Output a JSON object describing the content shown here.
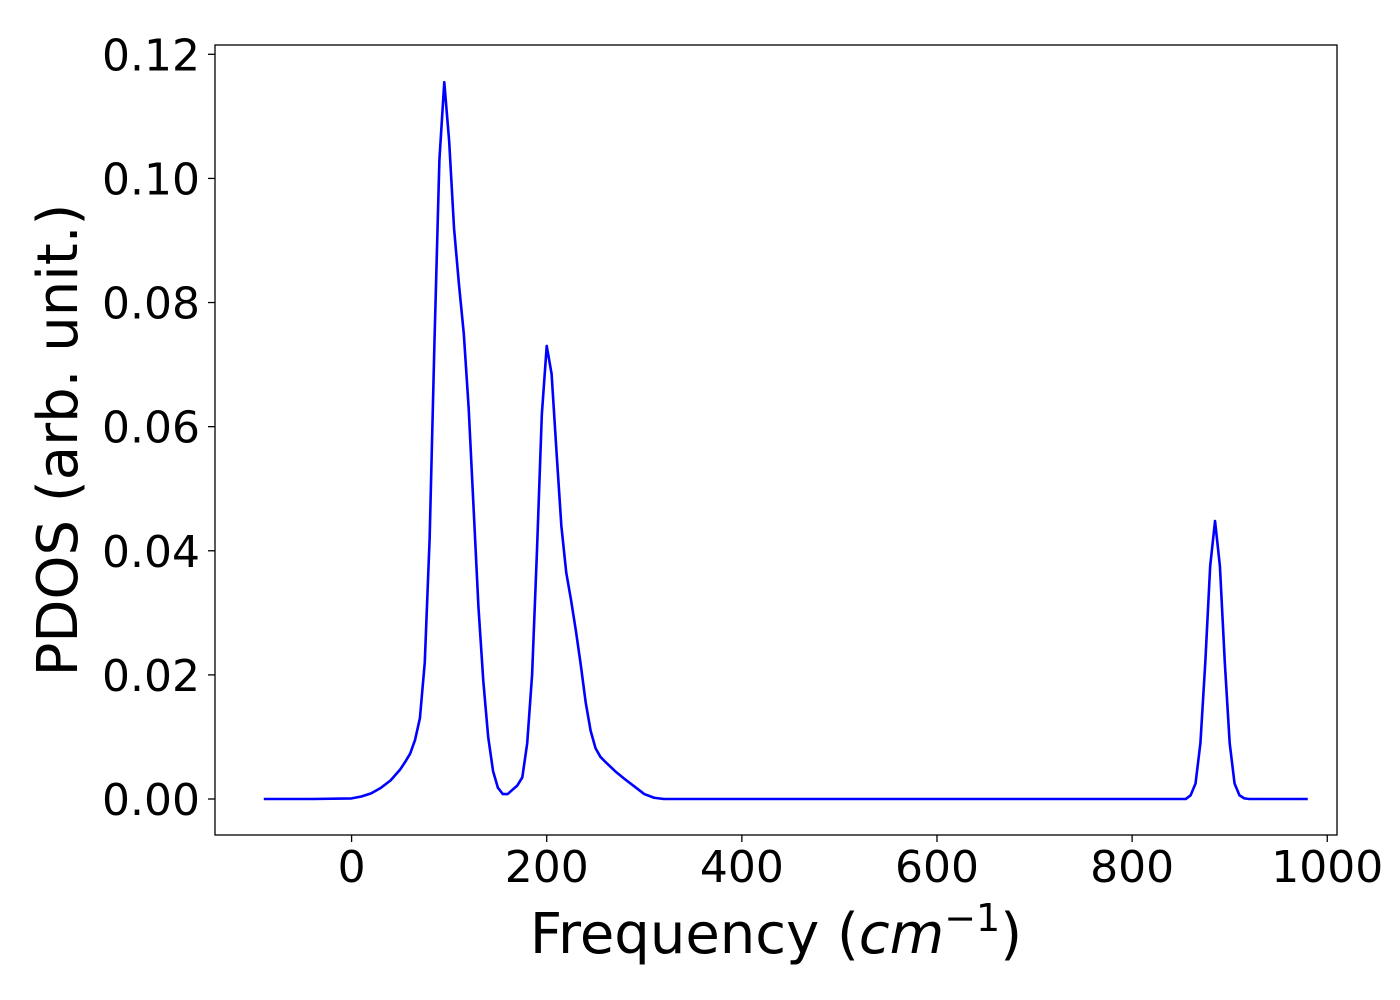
{
  "chart_data": {
    "type": "line",
    "title": "",
    "xlabel_main": "Frequency (",
    "xlabel_unit": "cm",
    "xlabel_exp": "−1",
    "xlabel_close": ")",
    "ylabel": "PDOS (arb. unit.)",
    "xlim": [
      -140,
      1010
    ],
    "ylim": [
      -0.0058,
      0.1215
    ],
    "x_ticks": [
      0,
      200,
      400,
      600,
      800,
      1000
    ],
    "x_tick_labels": [
      "0",
      "200",
      "400",
      "600",
      "800",
      "1000"
    ],
    "y_ticks": [
      0.0,
      0.02,
      0.04,
      0.06,
      0.08,
      0.1,
      0.12
    ],
    "y_tick_labels": [
      "0.00",
      "0.02",
      "0.04",
      "0.06",
      "0.08",
      "0.10",
      "0.12"
    ],
    "grid": false,
    "line_color": "#0000ff",
    "series": [
      {
        "x": [
          -90,
          -40,
          0,
          10,
          20,
          30,
          40,
          50,
          55,
          60,
          65,
          70,
          75,
          80,
          85,
          90,
          95,
          100,
          105,
          110,
          115,
          120,
          125,
          130,
          135,
          140,
          145,
          150,
          155,
          160,
          165,
          170,
          175,
          180,
          185,
          190,
          195,
          200,
          205,
          210,
          215,
          220,
          225,
          230,
          235,
          240,
          245,
          250,
          255,
          260,
          270,
          280,
          290,
          300,
          310,
          320,
          340,
          400,
          600,
          800,
          855,
          860,
          865,
          870,
          875,
          880,
          885,
          890,
          895,
          900,
          905,
          910,
          915,
          920,
          930,
          980
        ],
        "y": [
          0.0,
          0.0,
          0.0001,
          0.0004,
          0.0009,
          0.0018,
          0.003,
          0.0048,
          0.006,
          0.0073,
          0.0095,
          0.013,
          0.022,
          0.042,
          0.074,
          0.103,
          0.1155,
          0.106,
          0.092,
          0.083,
          0.075,
          0.063,
          0.047,
          0.031,
          0.019,
          0.01,
          0.0045,
          0.0018,
          0.0008,
          0.0008,
          0.0015,
          0.0022,
          0.0035,
          0.009,
          0.02,
          0.04,
          0.062,
          0.073,
          0.0685,
          0.056,
          0.044,
          0.0365,
          0.032,
          0.027,
          0.0215,
          0.0155,
          0.011,
          0.0082,
          0.0068,
          0.006,
          0.0045,
          0.0032,
          0.002,
          0.0008,
          0.0002,
          0.0,
          0.0,
          0.0,
          0.0,
          0.0,
          0.0,
          0.0006,
          0.0025,
          0.009,
          0.022,
          0.0375,
          0.0448,
          0.0375,
          0.022,
          0.009,
          0.0025,
          0.0006,
          0.0001,
          0.0,
          0.0,
          0.0
        ]
      }
    ]
  }
}
